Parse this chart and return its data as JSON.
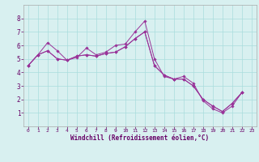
{
  "xlabel": "Windchill (Refroidissement éolien,°C)",
  "x": [
    0,
    1,
    2,
    3,
    4,
    5,
    6,
    7,
    8,
    9,
    10,
    11,
    12,
    13,
    14,
    15,
    16,
    17,
    18,
    19,
    20,
    21,
    22,
    23
  ],
  "line1": [
    4.5,
    5.3,
    6.2,
    5.6,
    4.9,
    5.1,
    5.8,
    5.3,
    5.5,
    6.0,
    6.1,
    7.0,
    7.8,
    5.0,
    3.7,
    3.5,
    3.7,
    3.2,
    1.9,
    1.3,
    1.0,
    1.5,
    2.5,
    null
  ],
  "line2": [
    4.5,
    5.3,
    5.6,
    5.0,
    4.9,
    5.2,
    5.3,
    5.2,
    5.4,
    5.5,
    5.9,
    6.5,
    7.0,
    4.5,
    3.8,
    3.5,
    3.5,
    3.0,
    2.0,
    1.5,
    1.1,
    1.7,
    2.5,
    null
  ],
  "line3": [
    4.5,
    5.3,
    5.6,
    5.0,
    4.9,
    5.2,
    5.3,
    5.2,
    5.4,
    5.5,
    5.9,
    6.5,
    7.0,
    4.5,
    3.8,
    3.5,
    3.5,
    3.0,
    2.0,
    1.5,
    1.1,
    1.7,
    2.5,
    null
  ],
  "line_color": "#993399",
  "bg_color": "#d8f0f0",
  "grid_color": "#aadddd",
  "ylim": [
    0,
    9
  ],
  "xlim": [
    -0.5,
    23.5
  ],
  "yticks": [
    1,
    2,
    3,
    4,
    5,
    6,
    7,
    8
  ],
  "xticks": [
    0,
    1,
    2,
    3,
    4,
    5,
    6,
    7,
    8,
    9,
    10,
    11,
    12,
    13,
    14,
    15,
    16,
    17,
    18,
    19,
    20,
    21,
    22,
    23
  ],
  "tick_fontsize": 4.5,
  "xlabel_fontsize": 5.5,
  "ytick_fontsize": 5.5
}
